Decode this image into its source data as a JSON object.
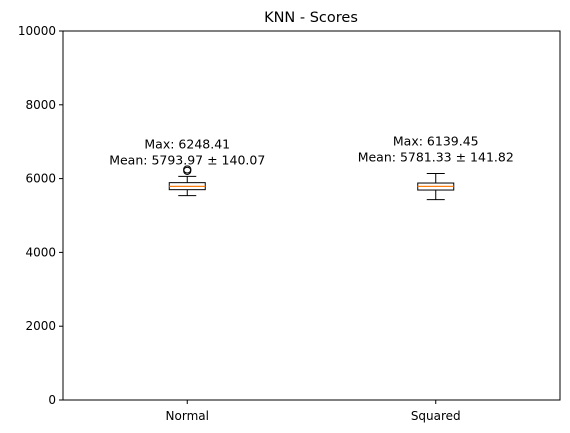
{
  "chart_data": {
    "type": "box",
    "title": "KNN - Scores",
    "xlabel": "",
    "ylabel": "",
    "ylim": [
      0,
      10000
    ],
    "yticks": [
      0,
      2000,
      4000,
      6000,
      8000,
      10000
    ],
    "grid": false,
    "categories": [
      "Normal",
      "Squared"
    ],
    "boxes": [
      {
        "category": "Normal",
        "whisker_low": 5540,
        "q1": 5700,
        "median": 5790,
        "q3": 5890,
        "whisker_high": 6060,
        "outliers": [
          6210,
          6248.41
        ],
        "annotation": [
          "Max: 6248.41",
          "Mean: 5793.97 ± 140.07"
        ]
      },
      {
        "category": "Squared",
        "whisker_low": 5430,
        "q1": 5690,
        "median": 5790,
        "q3": 5880,
        "whisker_high": 6139.45,
        "outliers": [],
        "annotation": [
          "Max: 6139.45",
          "Mean: 5781.33 ± 141.82"
        ]
      }
    ],
    "colors": {
      "box_edge": "#000000",
      "median": "#ff7f0e",
      "outlier_edge": "#000000"
    }
  }
}
